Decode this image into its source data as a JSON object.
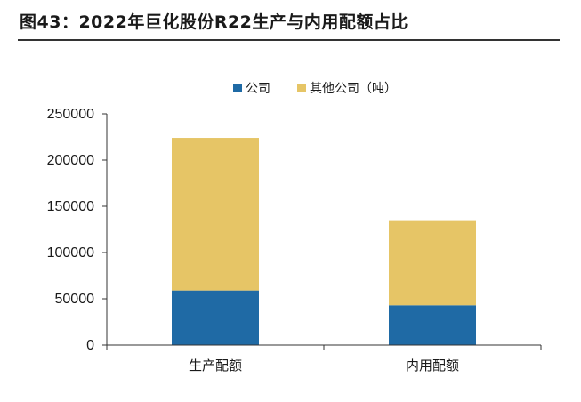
{
  "figure": {
    "title": "图43：2022年巨化股份R22生产与内用配额占比"
  },
  "colors": {
    "series_1": "#1f6aa5",
    "series_2": "#e6c566",
    "axis": "#333333"
  },
  "chart_data": {
    "type": "bar",
    "stacked": true,
    "categories": [
      "生产配额",
      "内用配额"
    ],
    "series": [
      {
        "name": "公司",
        "values": [
          59000,
          43000
        ]
      },
      {
        "name": "其他公司（吨）",
        "values": [
          165000,
          92000
        ]
      }
    ],
    "ylim": [
      0,
      250000
    ],
    "yticks": [
      0,
      50000,
      100000,
      150000,
      200000,
      250000
    ],
    "grid": false,
    "legend": "top-center"
  }
}
